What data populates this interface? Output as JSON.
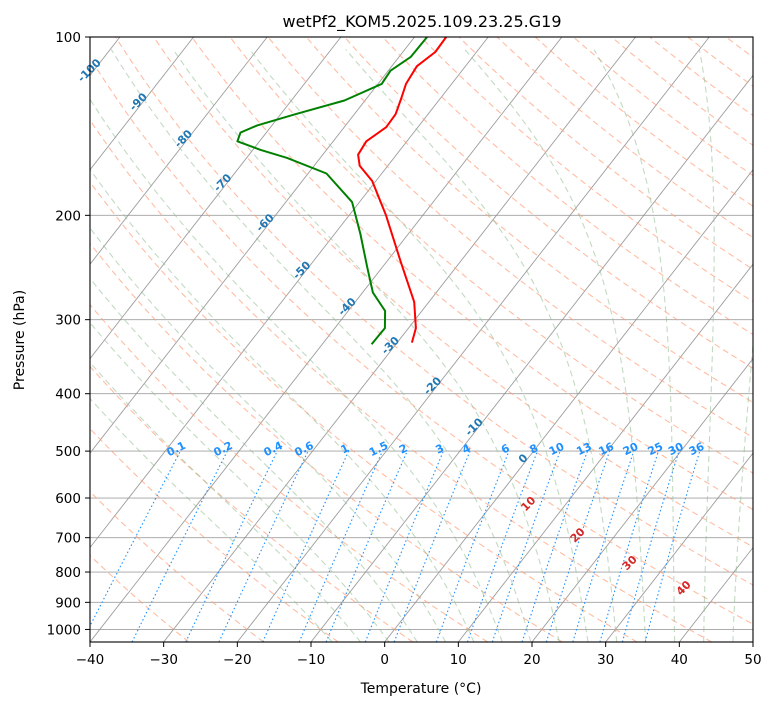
{
  "chart_data": {
    "type": "line",
    "chart_kind": "skew-t log-p diagram",
    "title": "wetPf2_KOM5.2025.109.23.25.G19",
    "xlabel": "Temperature (°C)",
    "ylabel": "Pressure (hPa)",
    "xlim": [
      -40,
      50
    ],
    "ylim": [
      1050,
      100
    ],
    "y_scale": "log",
    "grid": true,
    "x_ticks": [
      -40,
      -30,
      -20,
      -10,
      0,
      10,
      20,
      30,
      40,
      50
    ],
    "x_tick_labels": [
      "−40",
      "−30",
      "−20",
      "−10",
      "0",
      "10",
      "20",
      "30",
      "40",
      "50"
    ],
    "y_ticks": [
      100,
      200,
      300,
      400,
      500,
      600,
      700,
      800,
      900,
      1000
    ],
    "y_tick_labels": [
      "100",
      "200",
      "300",
      "400",
      "500",
      "600",
      "700",
      "800",
      "900",
      "1000"
    ],
    "series": [
      {
        "color": "#ff0000",
        "points": [
          [
            100,
            -55.7
          ],
          [
            106,
            -55.6
          ],
          [
            112,
            -56.6
          ],
          [
            120,
            -56.2
          ],
          [
            127,
            -55.3
          ],
          [
            135,
            -54.4
          ],
          [
            142,
            -54.3
          ],
          [
            150,
            -55.5
          ],
          [
            158,
            -55.2
          ],
          [
            165,
            -53.8
          ],
          [
            175,
            -50.5
          ],
          [
            200,
            -45.0
          ],
          [
            240,
            -38.0
          ],
          [
            280,
            -32.0
          ],
          [
            310,
            -29.0
          ],
          [
            328,
            -28.0
          ]
        ]
      },
      {
        "color": "#008000",
        "points": [
          [
            100,
            -58.3
          ],
          [
            108,
            -58.4
          ],
          [
            114,
            -59.7
          ],
          [
            120,
            -59.5
          ],
          [
            128,
            -62.8
          ],
          [
            135,
            -68.0
          ],
          [
            141,
            -72.0
          ],
          [
            145,
            -73.5
          ],
          [
            150,
            -73.0
          ],
          [
            155,
            -69.0
          ],
          [
            160,
            -64.5
          ],
          [
            170,
            -57.5
          ],
          [
            190,
            -51.0
          ],
          [
            215,
            -46.5
          ],
          [
            245,
            -42.0
          ],
          [
            270,
            -38.6
          ],
          [
            290,
            -35.0
          ],
          [
            310,
            -33.2
          ],
          [
            330,
            -33.3
          ]
        ]
      }
    ],
    "dry_adiabat_labels": [
      "-100",
      "-90",
      "-80",
      "-70",
      "-60",
      "-50",
      "-40",
      "-30",
      "-20",
      "-10",
      "0"
    ],
    "moist_adiabat_labels": [
      "10",
      "20",
      "30",
      "40"
    ],
    "mixing_ratio_labels": [
      "0.1",
      "0.2",
      "0.4",
      "0.6",
      "1",
      "1.5",
      "2",
      "3",
      "4",
      "6",
      "8",
      "10",
      "13",
      "16",
      "20",
      "25",
      "30",
      "36"
    ],
    "colors": {
      "temperature": "#ff0000",
      "dewpoint": "#008000",
      "dry_adiabats": "#ffa07a",
      "moist_adiabats": "#8fbc8f",
      "mixing_ratio": "#1e90ff",
      "isotherms": "#8c8c8c",
      "isobars": "#a0a0a0"
    }
  }
}
